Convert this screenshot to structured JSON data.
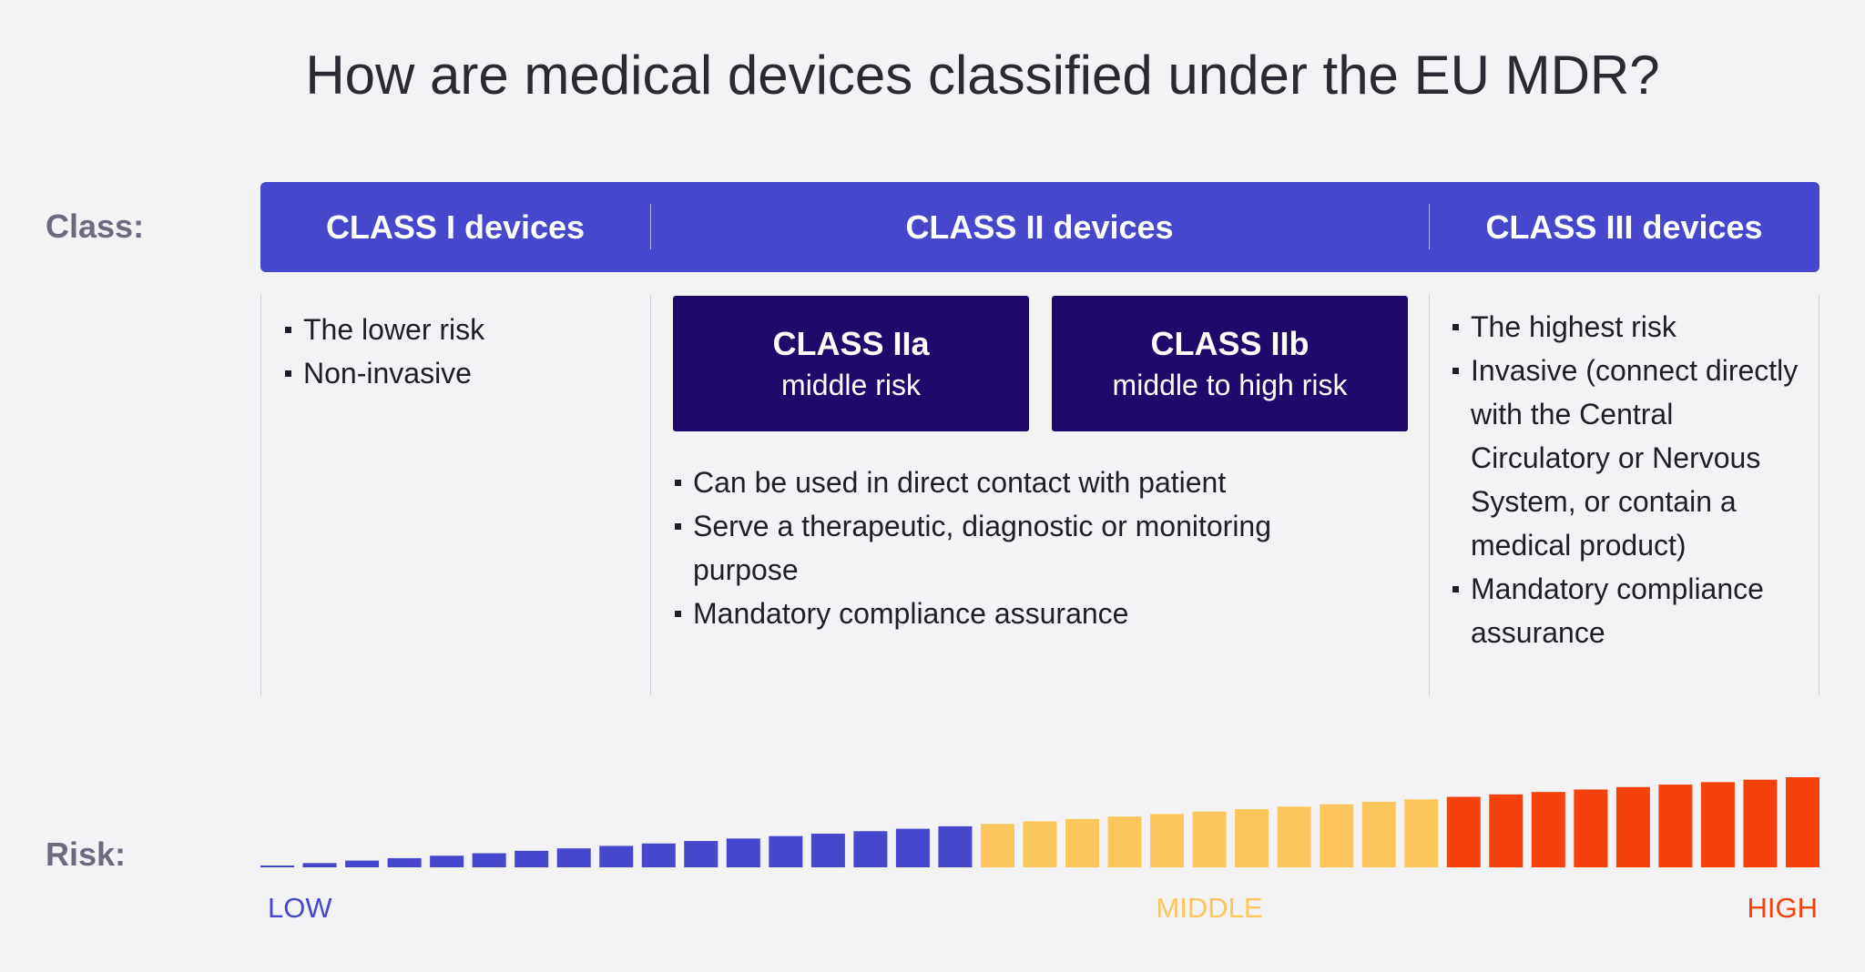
{
  "title": "How are medical devices classified under the EU MDR?",
  "row_labels": {
    "class": "Class:",
    "risk": "Risk:"
  },
  "columns": [
    {
      "header": "CLASS I devices",
      "bullets": [
        "The lower risk",
        "Non-invasive"
      ]
    },
    {
      "header": "CLASS II devices",
      "subclasses": [
        {
          "name": "CLASS IIa",
          "risk": "middle risk"
        },
        {
          "name": "CLASS IIb",
          "risk": "middle to high risk"
        }
      ],
      "bullets": [
        "Can be used in direct contact with patient",
        "Serve a therapeutic, diagnostic or monitoring purpose",
        "Mandatory compliance assurance"
      ]
    },
    {
      "header": "CLASS III devices",
      "bullets": [
        "The highest risk",
        "Invasive (connect directly with the Central Circulatory or Nervous System, or contain a medical product)",
        "Mandatory compliance assurance"
      ]
    }
  ],
  "risk_scale": {
    "low": "LOW",
    "middle": "MIDDLE",
    "high": "HIGH"
  }
}
